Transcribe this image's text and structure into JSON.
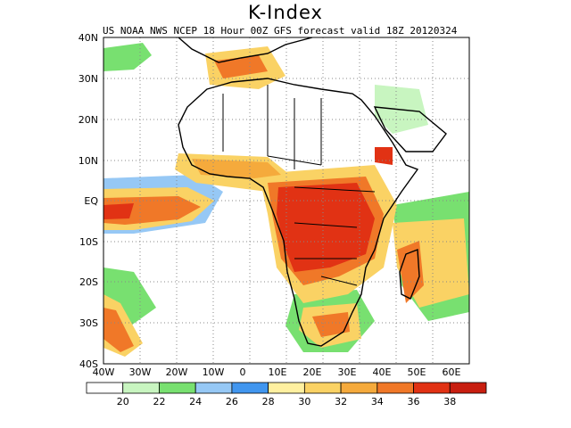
{
  "title": "K-Index",
  "subtitle": "US NOAA NWS NCEP 18 Hour 00Z GFS forecast valid 18Z 20120324",
  "lat_labels": [
    "40N",
    "30N",
    "20N",
    "10N",
    "EQ",
    "10S",
    "20S",
    "30S",
    "40S"
  ],
  "lon_labels": [
    "40W",
    "30W",
    "20W",
    "10W",
    "0",
    "10E",
    "20E",
    "30E",
    "40E",
    "50E",
    "60E"
  ],
  "colorbar": {
    "levels": [
      "20",
      "22",
      "24",
      "26",
      "28",
      "30",
      "32",
      "34",
      "36",
      "38"
    ],
    "colors": [
      "#ffffff",
      "#c8f5c0",
      "#78e070",
      "#96c8f5",
      "#4196ef",
      "#fff0a0",
      "#fad264",
      "#f5aa3c",
      "#f07828",
      "#e13214",
      "#c81e10"
    ]
  },
  "colors": {
    "land_border": "#000000",
    "grid": "#888888"
  }
}
